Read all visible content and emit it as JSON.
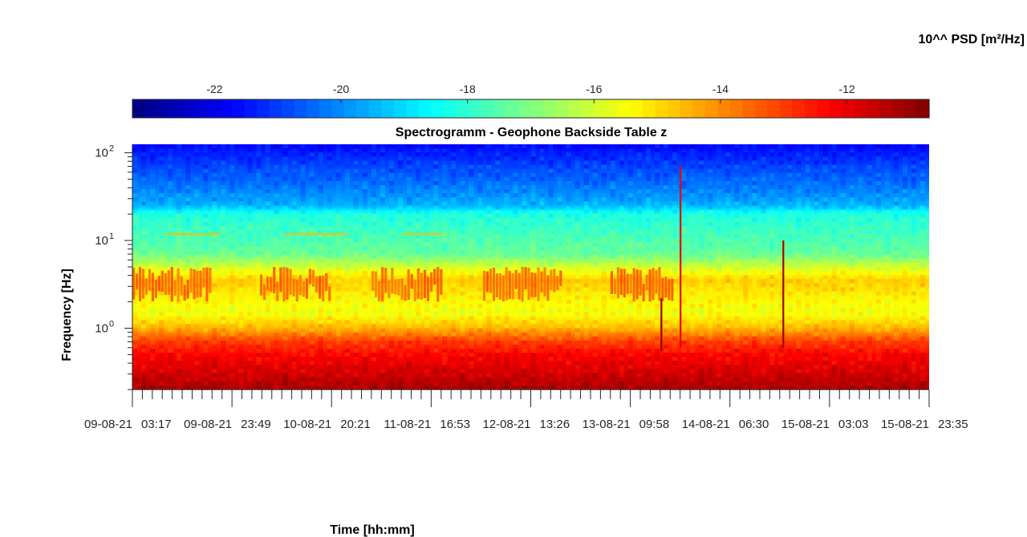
{
  "chart_data": {
    "type": "heatmap",
    "title": "Spectrogramm - Geophone Backside Table z",
    "xlabel": "Time [hh:mm]",
    "ylabel": "Frequency [Hz]",
    "y_scale": "log",
    "y_range_hz": [
      0.2,
      125
    ],
    "y_ticks": [
      {
        "value": 1,
        "base": "10",
        "exp": "0"
      },
      {
        "value": 10,
        "base": "10",
        "exp": "1"
      },
      {
        "value": 100,
        "base": "10",
        "exp": "2"
      }
    ],
    "x_ticks": [
      "09-08-21 03:17",
      "09-08-21 23:49",
      "10-08-21 20:21",
      "11-08-21 16:53",
      "12-08-21 13:26",
      "13-08-21 09:58",
      "14-08-21 06:30",
      "15-08-21 03:03",
      "15-08-21 23:35"
    ],
    "colorbar": {
      "label": "10^^ PSD [m²/Hz]",
      "range": [
        -23.3,
        -10.7
      ],
      "ticks": [
        -22,
        -20,
        -18,
        -16,
        -14,
        -12
      ],
      "colormap": "jet",
      "location": "top"
    },
    "psd_profile": [
      {
        "freq": 0.2,
        "log_psd": -11.2
      },
      {
        "freq": 0.3,
        "log_psd": -11.7
      },
      {
        "freq": 0.5,
        "log_psd": -12.3
      },
      {
        "freq": 0.7,
        "log_psd": -13.0
      },
      {
        "freq": 1.0,
        "log_psd": -14.5
      },
      {
        "freq": 1.5,
        "log_psd": -15.6
      },
      {
        "freq": 2.5,
        "log_psd": -15.2
      },
      {
        "freq": 3.5,
        "log_psd": -14.8
      },
      {
        "freq": 5.0,
        "log_psd": -16.0
      },
      {
        "freq": 7.0,
        "log_psd": -17.3
      },
      {
        "freq": 10.0,
        "log_psd": -17.6
      },
      {
        "freq": 20.0,
        "log_psd": -18.2
      },
      {
        "freq": 25.0,
        "log_psd": -19.5
      },
      {
        "freq": 40.0,
        "log_psd": -20.2
      },
      {
        "freq": 70.0,
        "log_psd": -20.9
      },
      {
        "freq": 125.0,
        "log_psd": -21.7
      }
    ],
    "features": [
      {
        "type": "activity-band",
        "freq_range": [
          2,
          5
        ],
        "time_ranges": [
          [
            0.0,
            0.1
          ],
          [
            0.16,
            0.25
          ],
          [
            0.3,
            0.39
          ],
          [
            0.44,
            0.54
          ],
          [
            0.6,
            0.68
          ]
        ],
        "log_psd": -13.2
      },
      {
        "type": "line",
        "freq": 11.8,
        "time_ranges": [
          [
            0.04,
            0.11
          ],
          [
            0.19,
            0.27
          ],
          [
            0.34,
            0.39
          ]
        ],
        "log_psd": -14.6
      },
      {
        "type": "transient",
        "time": 0.664,
        "freq_range": [
          0.55,
          2.2
        ],
        "log_psd": -11.0
      },
      {
        "type": "transient",
        "time": 0.688,
        "freq_range": [
          0.6,
          70
        ],
        "log_psd": -12.0
      },
      {
        "type": "transient",
        "time": 0.817,
        "freq_range": [
          0.6,
          10
        ],
        "log_psd": -11.2
      }
    ]
  }
}
